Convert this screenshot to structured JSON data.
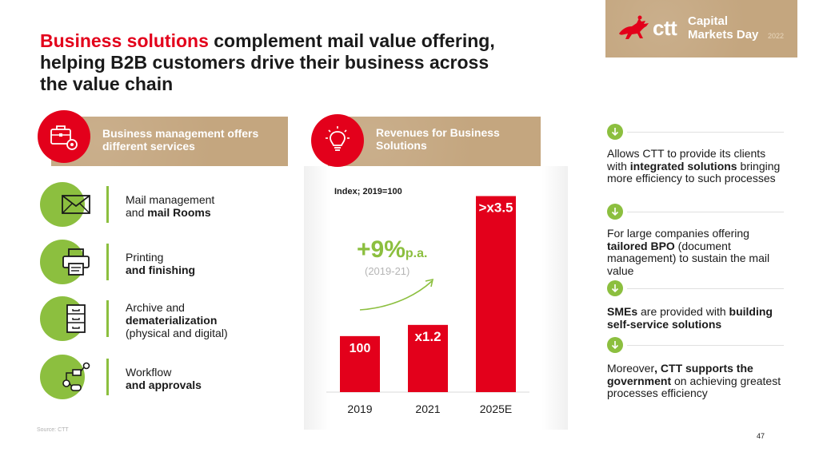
{
  "title": {
    "accent": "Business solutions",
    "rest": " complement mail value offering, helping B2B customers drive their business across the value chain"
  },
  "logo": {
    "brand": "ctt",
    "event_line1": "Capital",
    "event_line2": "Markets Day",
    "year": "2022"
  },
  "left_panel": {
    "header": "Business management offers different services",
    "services": [
      {
        "icon": "envelope-icon",
        "line1": "Mail management",
        "line2_prefix": "and ",
        "line2_bold": "mail Rooms",
        "line3": ""
      },
      {
        "icon": "printer-icon",
        "line1": "Printing",
        "line2_prefix": "",
        "line2_bold": "and finishing",
        "line3": ""
      },
      {
        "icon": "archive-icon",
        "line1": "Archive and",
        "line2_prefix": "",
        "line2_bold": "dematerialization",
        "line3": "(physical and digital)"
      },
      {
        "icon": "workflow-icon",
        "line1": "Workflow",
        "line2_prefix": "",
        "line2_bold": "and approvals",
        "line3": ""
      }
    ]
  },
  "chart_panel": {
    "header": "Revenues for Business Solutions",
    "index_label": "Index; 2019=100",
    "cagr_value": "+9%",
    "cagr_unit": "p.a.",
    "cagr_period": "(2019-21)"
  },
  "chart_data": {
    "type": "bar",
    "title": "Revenues for Business Solutions",
    "subtitle": "Index; 2019=100",
    "categories": [
      "2019",
      "2021",
      "2025E"
    ],
    "values": [
      100,
      120,
      350
    ],
    "data_labels": [
      "100",
      "x1.2",
      ">x3.5"
    ],
    "ylim": [
      0,
      375
    ],
    "grid": false,
    "legend": "none",
    "bar_color": "#e3001b"
  },
  "right_panel": {
    "items": [
      {
        "parts": [
          [
            "Allows CTT to provide its clients with ",
            false
          ],
          [
            "integrated solutions",
            true
          ],
          [
            " bringing more efficiency to such processes",
            false
          ]
        ]
      },
      {
        "parts": [
          [
            "For large companies offering ",
            false
          ],
          [
            "tailored BPO",
            true
          ],
          [
            " (document management) to sustain the mail value",
            false
          ]
        ]
      },
      {
        "parts": [
          [
            "SMEs",
            true
          ],
          [
            " are provided with ",
            false
          ],
          [
            "building self-service solutions",
            true
          ]
        ]
      },
      {
        "parts": [
          [
            "Moreover",
            false
          ],
          [
            ", CTT supports the government",
            true
          ],
          [
            " on achieving greatest processes efficiency",
            false
          ]
        ]
      }
    ]
  },
  "footer": {
    "source": "Source: CTT",
    "page": "47"
  },
  "colors": {
    "accent_red": "#e3001b",
    "accent_green": "#8cbf3f",
    "kraft": "#c4a67f"
  }
}
